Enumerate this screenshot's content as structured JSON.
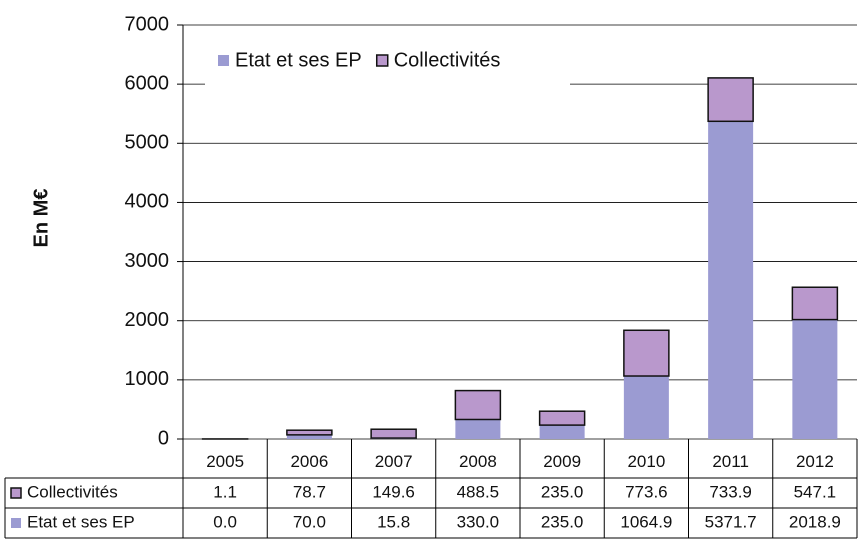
{
  "chart_data": {
    "type": "bar",
    "stacked": true,
    "y_label": "En M€",
    "categories": [
      "2005",
      "2006",
      "2007",
      "2008",
      "2009",
      "2010",
      "2011",
      "2012"
    ],
    "series": [
      {
        "name": "Etat et ses EP",
        "color": "#9b9bd2",
        "values": [
          0.0,
          70.0,
          15.8,
          330.0,
          235.0,
          1064.9,
          5371.7,
          2018.9
        ],
        "value_labels": [
          "0.0",
          "70.0",
          "15.8",
          "330.0",
          "235.0",
          "1064.9",
          "5371.7",
          "2018.9"
        ]
      },
      {
        "name": "Collectivités",
        "color": "#b998cc",
        "values": [
          1.1,
          78.7,
          149.6,
          488.5,
          235.0,
          773.6,
          733.9,
          547.1
        ],
        "value_labels": [
          "1.1",
          "78.7",
          "149.6",
          "488.5",
          "235.0",
          "773.6",
          "733.9",
          "547.1"
        ]
      }
    ],
    "ylim": [
      0,
      7000
    ],
    "yticks": [
      0,
      1000,
      2000,
      3000,
      4000,
      5000,
      6000,
      7000
    ],
    "grid": true,
    "legend": "top"
  }
}
